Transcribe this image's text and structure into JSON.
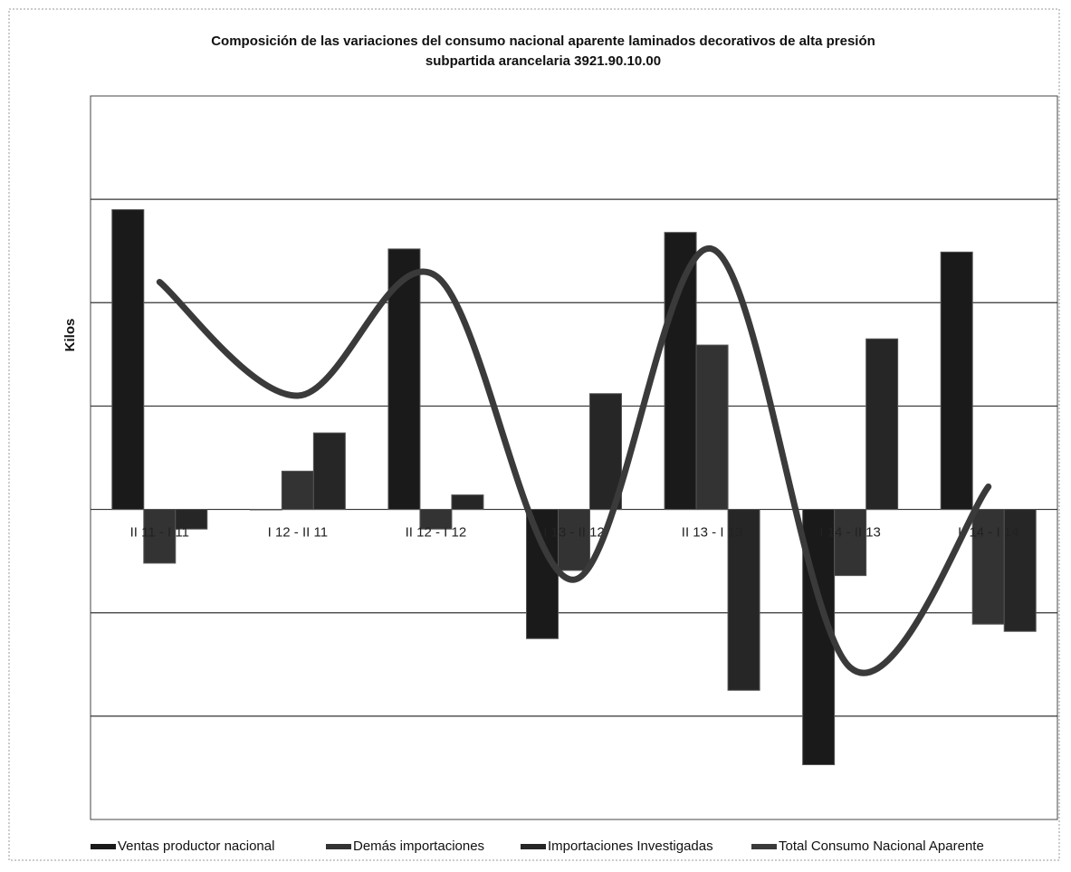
{
  "chart_data": {
    "type": "bar_line",
    "title": "Composición de las variaciones del consumo nacional  aparente laminados decorativos de alta presión",
    "subtitle": "subpartida arancelaria 3921.90.10.00",
    "y_label": "Kilos",
    "categories": [
      "II 11 - I 11",
      "I 12 - II 11",
      "II 12 - I 12",
      "I 13 - II 12",
      "II 13 - I 13",
      "I 14 - II 13",
      "II 14 - I 14"
    ],
    "series": [
      {
        "name": "Ventas productor nacional",
        "color": "#1a1a1a",
        "kind": "bar",
        "values": [
          2.9,
          0,
          2.52,
          -1.25,
          2.68,
          -2.47,
          2.49
        ]
      },
      {
        "name": "Demás importaciones",
        "color": "#333333",
        "kind": "bar",
        "values": [
          -0.52,
          0.37,
          -0.19,
          -0.59,
          1.59,
          -0.64,
          -1.11
        ]
      },
      {
        "name": "Importaciones Investigadas",
        "color": "#262626",
        "kind": "bar",
        "values": [
          -0.19,
          0.74,
          0.14,
          1.12,
          -1.75,
          1.65,
          -1.18
        ]
      },
      {
        "name": "Total Consumo Nacional Aparente",
        "color": "#3a3a3a",
        "kind": "line",
        "values": [
          2.2,
          1.1,
          2.26,
          -0.68,
          2.52,
          -1.53,
          0.22
        ]
      }
    ],
    "ylim": [
      -3,
      4
    ],
    "yticks": [
      -2,
      -1,
      0,
      1,
      2,
      3
    ],
    "grid": true
  }
}
